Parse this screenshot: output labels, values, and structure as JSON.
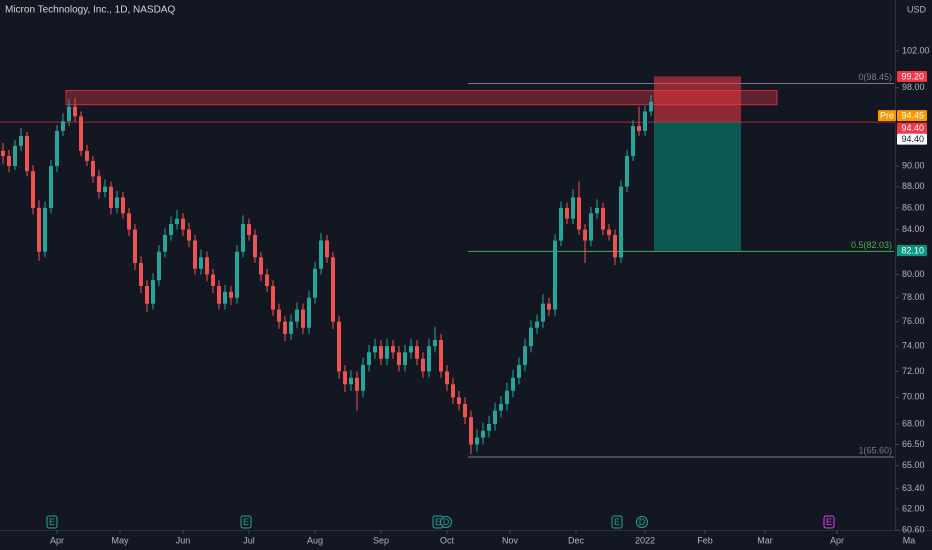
{
  "chart_data": {
    "type": "candlestick",
    "title": "Micron Technology, Inc., 1D, NASDAQ",
    "currency": "USD",
    "log": true,
    "xlim": [
      0,
      310
    ],
    "ylim": [
      60.6,
      107.8
    ],
    "xticks": [
      {
        "value": 19,
        "label": "Apr"
      },
      {
        "value": 40,
        "label": "May"
      },
      {
        "value": 61,
        "label": "Jun"
      },
      {
        "value": 83,
        "label": "Jul"
      },
      {
        "value": 105,
        "label": "Aug"
      },
      {
        "value": 127,
        "label": "Sep"
      },
      {
        "value": 149,
        "label": "Oct"
      },
      {
        "value": 170,
        "label": "Nov"
      },
      {
        "value": 192,
        "label": "Dec"
      },
      {
        "value": 215,
        "label": "2022"
      },
      {
        "value": 235,
        "label": "Feb"
      },
      {
        "value": 255,
        "label": "Mar"
      },
      {
        "value": 279,
        "label": "Apr"
      },
      {
        "value": 303,
        "label": "Ma"
      }
    ],
    "yticks": [
      {
        "value": 102,
        "label": "102.00"
      },
      {
        "value": 98,
        "label": "98.00"
      },
      {
        "value": 90,
        "label": "90.00"
      },
      {
        "value": 88,
        "label": "88.00"
      },
      {
        "value": 86,
        "label": "86.00"
      },
      {
        "value": 84,
        "label": "84.00"
      },
      {
        "value": 80,
        "label": "80.00"
      },
      {
        "value": 78,
        "label": "78.00"
      },
      {
        "value": 76,
        "label": "76.00"
      },
      {
        "value": 74,
        "label": "74.00"
      },
      {
        "value": 72,
        "label": "72.00"
      },
      {
        "value": 70,
        "label": "70.00"
      },
      {
        "value": 68,
        "label": "68.00"
      },
      {
        "value": 66.5,
        "label": "66.50"
      },
      {
        "value": 65,
        "label": "65.00"
      },
      {
        "value": 63.4,
        "label": "63.40"
      },
      {
        "value": 62,
        "label": "62.00"
      },
      {
        "value": 60.6,
        "label": "60.60"
      }
    ],
    "up_color": "#26a69a",
    "down_color": "#ef5350",
    "x": [
      1,
      3,
      5,
      7,
      9,
      11,
      13,
      15,
      17,
      19,
      21,
      23,
      25,
      27,
      29,
      31,
      33,
      35,
      37,
      39,
      41,
      43,
      45,
      47,
      49,
      51,
      53,
      55,
      57,
      59,
      61,
      63,
      65,
      67,
      69,
      71,
      73,
      75,
      77,
      79,
      81,
      83,
      85,
      87,
      89,
      91,
      93,
      95,
      97,
      99,
      101,
      103,
      105,
      107,
      109,
      111,
      113,
      115,
      117,
      119,
      121,
      123,
      125,
      127,
      129,
      131,
      133,
      135,
      137,
      139,
      141,
      143,
      145,
      147,
      149,
      151,
      153,
      155,
      157,
      159,
      161,
      163,
      165,
      167,
      169,
      171,
      173,
      175,
      177,
      179,
      181,
      183,
      185,
      187,
      189,
      191,
      193,
      195,
      197,
      199,
      201,
      203,
      205,
      207,
      209,
      211,
      213,
      215,
      217
    ],
    "candles": [
      [
        91.5,
        92.3,
        90.2,
        91.0
      ],
      [
        91.0,
        91.6,
        89.4,
        90.0
      ],
      [
        90.0,
        92.6,
        89.6,
        92.0
      ],
      [
        92.0,
        93.8,
        91.5,
        93.0
      ],
      [
        93.0,
        93.4,
        89.0,
        89.5
      ],
      [
        89.5,
        90.1,
        85.4,
        86.0
      ],
      [
        86.0,
        86.7,
        81.2,
        82.0
      ],
      [
        82.0,
        86.6,
        81.5,
        86.0
      ],
      [
        86.0,
        90.6,
        85.5,
        90.0
      ],
      [
        90.0,
        94.1,
        89.4,
        93.5
      ],
      [
        93.5,
        95.3,
        93.0,
        94.5
      ],
      [
        94.5,
        96.8,
        94.0,
        96.0
      ],
      [
        96.0,
        96.9,
        94.4,
        95.0
      ],
      [
        95.0,
        95.5,
        91.0,
        91.5
      ],
      [
        91.5,
        92.1,
        90.0,
        90.5
      ],
      [
        90.5,
        91.0,
        88.4,
        89.0
      ],
      [
        89.0,
        89.6,
        86.9,
        87.5
      ],
      [
        87.5,
        88.7,
        87.0,
        88.0
      ],
      [
        88.0,
        88.5,
        85.4,
        86.0
      ],
      [
        86.0,
        87.6,
        85.5,
        87.0
      ],
      [
        87.0,
        87.5,
        85.0,
        85.5
      ],
      [
        85.5,
        86.0,
        83.4,
        84.0
      ],
      [
        84.0,
        84.5,
        80.4,
        81.0
      ],
      [
        81.0,
        81.6,
        78.4,
        79.0
      ],
      [
        79.0,
        79.5,
        76.8,
        77.5
      ],
      [
        77.5,
        80.1,
        77.0,
        79.5
      ],
      [
        79.5,
        82.6,
        79.0,
        82.0
      ],
      [
        82.0,
        84.1,
        81.5,
        83.5
      ],
      [
        83.5,
        85.2,
        83.0,
        84.5
      ],
      [
        84.5,
        85.8,
        84.0,
        85.0
      ],
      [
        85.0,
        85.5,
        83.4,
        84.0
      ],
      [
        84.0,
        84.6,
        82.4,
        83.0
      ],
      [
        83.0,
        83.5,
        80.0,
        80.5
      ],
      [
        80.5,
        82.2,
        80.0,
        81.5
      ],
      [
        81.5,
        82.0,
        79.4,
        80.0
      ],
      [
        80.0,
        80.5,
        78.4,
        79.0
      ],
      [
        79.0,
        79.5,
        77.0,
        77.5
      ],
      [
        77.5,
        79.1,
        77.0,
        78.5
      ],
      [
        78.5,
        79.0,
        77.4,
        78.0
      ],
      [
        78.0,
        82.6,
        77.5,
        82.0
      ],
      [
        82.0,
        85.3,
        81.5,
        84.5
      ],
      [
        84.5,
        85.0,
        83.0,
        83.5
      ],
      [
        83.5,
        84.0,
        81.0,
        81.5
      ],
      [
        81.5,
        82.0,
        79.4,
        80.0
      ],
      [
        80.0,
        80.5,
        78.5,
        79.0
      ],
      [
        79.0,
        79.5,
        76.5,
        77.0
      ],
      [
        77.0,
        77.5,
        75.4,
        76.0
      ],
      [
        76.0,
        76.5,
        74.4,
        75.0
      ],
      [
        75.0,
        76.6,
        74.5,
        76.0
      ],
      [
        76.0,
        77.6,
        75.5,
        77.0
      ],
      [
        77.0,
        77.5,
        75.0,
        75.5
      ],
      [
        75.5,
        78.6,
        75.0,
        78.0
      ],
      [
        78.0,
        81.1,
        77.5,
        80.5
      ],
      [
        80.5,
        83.7,
        80.0,
        83.0
      ],
      [
        83.0,
        83.5,
        81.0,
        81.5
      ],
      [
        81.5,
        82.0,
        75.4,
        76.0
      ],
      [
        76.0,
        76.5,
        71.4,
        72.0
      ],
      [
        72.0,
        72.5,
        70.4,
        71.0
      ],
      [
        71.0,
        72.1,
        70.5,
        71.5
      ],
      [
        71.5,
        72.0,
        69.0,
        70.5
      ],
      [
        70.5,
        73.1,
        70.0,
        72.5
      ],
      [
        72.5,
        74.1,
        72.0,
        73.5
      ],
      [
        73.5,
        74.6,
        73.0,
        74.0
      ],
      [
        74.0,
        74.5,
        72.5,
        73.0
      ],
      [
        73.0,
        74.6,
        72.5,
        74.0
      ],
      [
        74.0,
        74.5,
        73.0,
        73.5
      ],
      [
        73.5,
        74.0,
        72.0,
        72.5
      ],
      [
        72.5,
        74.1,
        72.0,
        73.5
      ],
      [
        73.5,
        74.6,
        73.0,
        74.0
      ],
      [
        74.0,
        74.5,
        72.5,
        73.0
      ],
      [
        73.0,
        73.5,
        71.5,
        72.0
      ],
      [
        72.0,
        74.6,
        71.5,
        74.0
      ],
      [
        74.0,
        75.6,
        73.5,
        74.5
      ],
      [
        74.5,
        75.0,
        71.5,
        72.0
      ],
      [
        72.0,
        72.5,
        70.5,
        71.0
      ],
      [
        71.0,
        71.5,
        69.5,
        70.0
      ],
      [
        70.0,
        70.5,
        69.0,
        69.5
      ],
      [
        69.5,
        70.0,
        68.0,
        68.5
      ],
      [
        68.5,
        69.0,
        65.8,
        66.5
      ],
      [
        66.5,
        67.6,
        66.0,
        67.0
      ],
      [
        67.0,
        68.1,
        66.5,
        67.5
      ],
      [
        67.5,
        68.6,
        67.0,
        68.0
      ],
      [
        68.0,
        69.6,
        67.5,
        69.0
      ],
      [
        69.0,
        70.1,
        68.5,
        69.5
      ],
      [
        69.5,
        71.1,
        69.0,
        70.5
      ],
      [
        70.5,
        72.1,
        70.0,
        71.5
      ],
      [
        71.5,
        73.1,
        71.0,
        72.5
      ],
      [
        72.5,
        74.6,
        72.0,
        74.0
      ],
      [
        74.0,
        76.1,
        73.5,
        75.5
      ],
      [
        75.5,
        76.6,
        75.0,
        76.0
      ],
      [
        76.0,
        78.3,
        75.5,
        77.5
      ],
      [
        77.5,
        78.0,
        76.5,
        77.0
      ],
      [
        77.0,
        83.6,
        76.5,
        83.0
      ],
      [
        83.0,
        86.6,
        82.5,
        86.0
      ],
      [
        86.0,
        86.5,
        84.5,
        85.0
      ],
      [
        85.0,
        87.8,
        84.5,
        87.0
      ],
      [
        87.0,
        88.5,
        83.5,
        84.0
      ],
      [
        84.0,
        84.5,
        81.0,
        83.0
      ],
      [
        83.0,
        86.1,
        82.5,
        85.5
      ],
      [
        85.5,
        86.8,
        85.0,
        86.0
      ],
      [
        86.0,
        86.5,
        83.5,
        84.0
      ],
      [
        84.0,
        84.5,
        83.0,
        83.5
      ],
      [
        83.5,
        84.0,
        80.8,
        81.5
      ],
      [
        81.5,
        88.6,
        81.0,
        88.0
      ],
      [
        88.0,
        91.6,
        87.5,
        91.0
      ],
      [
        91.0,
        94.6,
        90.5,
        94.0
      ],
      [
        94.0,
        96.0,
        93.0,
        93.5
      ],
      [
        93.5,
        96.1,
        93.0,
        95.5
      ],
      [
        95.5,
        97.2,
        95.0,
        96.5
      ]
    ],
    "zone": {
      "x": [
        22,
        259
      ],
      "y": [
        96.2,
        97.7
      ],
      "color": "#f23645"
    },
    "position": {
      "x": [
        218,
        247
      ],
      "entry": 94.4,
      "stop": 99.2,
      "target": 82.1
    },
    "fib": {
      "x": [
        156,
        298
      ],
      "levels": [
        {
          "value": 98.45,
          "label": "0(98.45)",
          "color": "#787b86"
        },
        {
          "value": 82.03,
          "label": "0.5(82.03)",
          "color": "#4caf50"
        },
        {
          "value": 65.6,
          "label": "1(65.60)",
          "color": "#787b86"
        }
      ]
    },
    "price_labels": [
      {
        "value": 99.2,
        "label": "99.20",
        "color": "#f23645"
      },
      {
        "value": 94.45,
        "label": "94.45",
        "tag": "Pre",
        "color": "#ff9800"
      },
      {
        "value": 94.4,
        "label": "94.40",
        "color": "#f23645"
      },
      {
        "value": 94.4,
        "label": "94.40",
        "color": "#ffffff"
      },
      {
        "value": 82.1,
        "label": "82.10",
        "color": "#089981"
      }
    ],
    "events": [
      "E",
      "E",
      "E",
      "D",
      "E",
      "D",
      "E"
    ]
  }
}
